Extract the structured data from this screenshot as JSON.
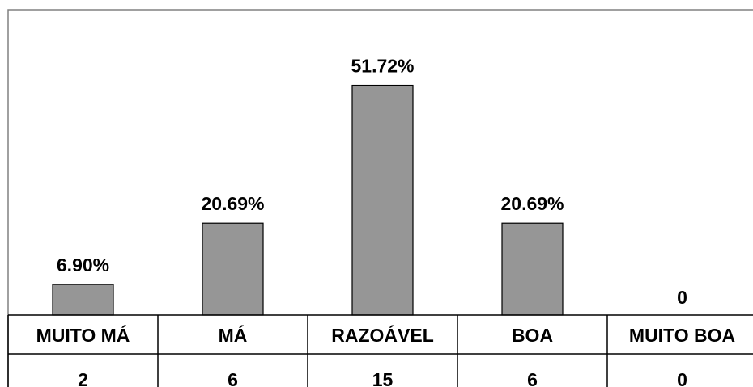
{
  "chart_data": {
    "type": "bar",
    "categories": [
      "MUITO MÁ",
      "MÁ",
      "RAZOÁVEL",
      "BOA",
      "MUITO BOA"
    ],
    "values": [
      6.9,
      20.69,
      51.72,
      20.69,
      0
    ],
    "value_labels": [
      "6.90%",
      "20.69%",
      "51.72%",
      "20.69%",
      "0"
    ],
    "counts": [
      "2",
      "6",
      "15",
      "6",
      "0"
    ],
    "ylim": [
      0,
      60
    ],
    "bar_color": "#969696",
    "bar_outline": "#000000",
    "frame_color": "#808080",
    "grid": false,
    "legend": "none",
    "data_table": true
  }
}
